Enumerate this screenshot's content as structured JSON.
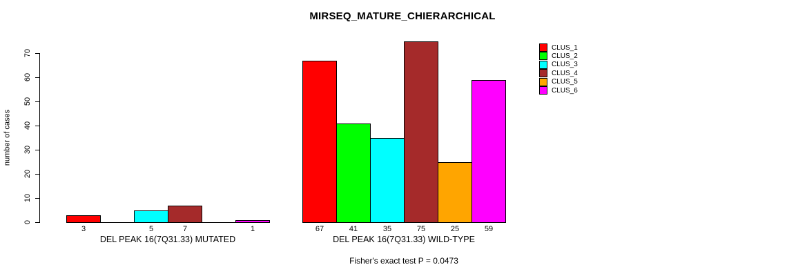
{
  "chart_data": {
    "type": "bar",
    "title": "MIRSEQ_MATURE_CHIERARCHICAL",
    "ylabel": "number of cases",
    "ylim": [
      0,
      70
    ],
    "yticks": [
      0,
      10,
      20,
      30,
      40,
      50,
      60,
      70
    ],
    "grid": false,
    "legend_position": "top-right",
    "categories": [
      "CLUS_1",
      "CLUS_2",
      "CLUS_3",
      "CLUS_4",
      "CLUS_5",
      "CLUS_6"
    ],
    "colors": [
      "#FF0000",
      "#00FF00",
      "#00FFFF",
      "#A52A2A",
      "#FFA500",
      "#FF00FF"
    ],
    "groups": [
      {
        "label": "DEL PEAK 16(7Q31.33) MUTATED",
        "values": [
          3,
          0,
          5,
          7,
          0,
          1
        ]
      },
      {
        "label": "DEL PEAK 16(7Q31.33) WILD-TYPE",
        "values": [
          67,
          41,
          35,
          75,
          25,
          59
        ]
      }
    ],
    "annotation": "Fisher's exact test P = 0.0473",
    "bar_outline_color": "#000000",
    "background_color": "#FFFFFF"
  }
}
